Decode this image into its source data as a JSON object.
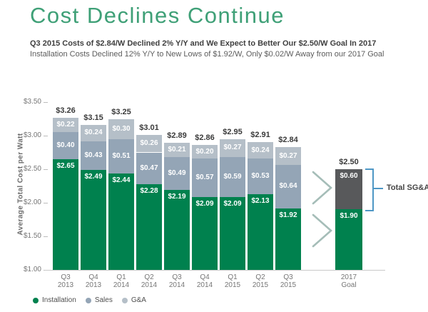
{
  "header": {
    "title": "Cost Declines Continue",
    "subtitle_bold": "Q3 2015 Costs of $2.84/W Declined 2% Y/Y and We Expect to Better Our $2.50/W Goal In 2017",
    "subtitle": "Installation Costs Declined 12% Y/Y to New Lows of $1.92/W, Only $0.02/W Away from our 2017 Goal"
  },
  "colors": {
    "title_green": "#3fa077",
    "installation": "#00814e",
    "sales": "#94a5b6",
    "ga": "#b5bfc8",
    "sgna_dark": "#58595b",
    "bracket_blue": "#4e97c5",
    "chevron": "#a5bdb8",
    "axis_text": "#767676",
    "total_label": "#3a3a3a"
  },
  "chart_data": {
    "type": "bar",
    "stacked": true,
    "title": "",
    "xlabel": "",
    "ylabel": "Average Total Cost per Watt",
    "ylim": [
      1.0,
      3.5
    ],
    "yticks": [
      1.0,
      1.5,
      2.0,
      2.5,
      3.0,
      3.5
    ],
    "grid": false,
    "legend_position": "bottom-left",
    "categories": [
      "Q3 2013",
      "Q4 2013",
      "Q1 2014",
      "Q2 2014",
      "Q3 2014",
      "Q4 2014",
      "Q1 2015",
      "Q2 2015",
      "Q3 2015"
    ],
    "series": [
      {
        "name": "Installation",
        "values": [
          2.65,
          2.49,
          2.44,
          2.28,
          2.19,
          2.09,
          2.09,
          2.13,
          1.92
        ]
      },
      {
        "name": "Sales",
        "values": [
          0.4,
          0.43,
          0.51,
          0.47,
          0.49,
          0.57,
          0.59,
          0.53,
          0.64
        ]
      },
      {
        "name": "G&A",
        "values": [
          0.22,
          0.24,
          0.3,
          0.26,
          0.21,
          0.2,
          0.27,
          0.24,
          0.27
        ]
      }
    ],
    "totals": [
      3.26,
      3.15,
      3.25,
      3.01,
      2.89,
      2.86,
      2.95,
      2.91,
      2.84
    ],
    "goal": {
      "category": "2017 Goal",
      "installation": 1.9,
      "total_sgna": 0.6,
      "total": 2.5
    },
    "annotation": "Total SG&A"
  },
  "legend": [
    {
      "label": "Installation",
      "color_key": "installation"
    },
    {
      "label": "Sales",
      "color_key": "sales"
    },
    {
      "label": "G&A",
      "color_key": "ga"
    }
  ]
}
